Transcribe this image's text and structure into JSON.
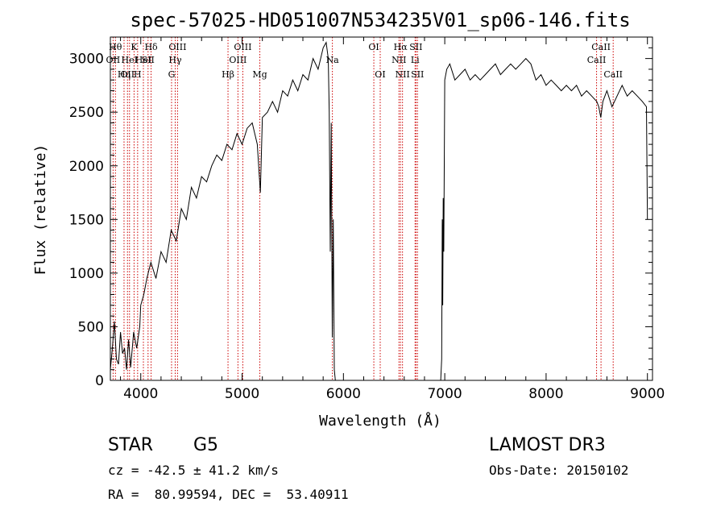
{
  "chart_data": {
    "type": "line",
    "title": "spec-57025-HD051007N534235V01_sp06-146.fits",
    "xlabel": "Wavelength (Å)",
    "ylabel": "Flux (relative)",
    "xlim": [
      3700,
      9050
    ],
    "ylim": [
      0,
      3200
    ],
    "xticks": [
      4000,
      5000,
      6000,
      7000,
      8000,
      9000
    ],
    "yticks": [
      0,
      500,
      1000,
      1500,
      2000,
      2500,
      3000
    ],
    "grid": false,
    "line_color": "#000000",
    "marker_color": "#cc0000",
    "series": [
      {
        "x": [
          3700,
          3720,
          3740,
          3760,
          3780,
          3800,
          3820,
          3840,
          3860,
          3880,
          3900,
          3930,
          3960,
          3990,
          4000,
          4030,
          4060,
          4100,
          4150,
          4200,
          4250,
          4300,
          4350,
          4400,
          4450,
          4500,
          4550,
          4600,
          4650,
          4700,
          4750,
          4800,
          4850,
          4900,
          4950,
          5000,
          5050,
          5100,
          5150,
          5180,
          5200,
          5250,
          5300,
          5350,
          5400,
          5450,
          5500,
          5550,
          5600,
          5650,
          5700,
          5750,
          5800,
          5830,
          5850,
          5860,
          5870,
          5880,
          5890,
          5900,
          5910,
          5920,
          5930,
          5960,
          6000,
          6100,
          6200,
          6300,
          6400,
          6500,
          6600,
          6700,
          6800,
          6900,
          6960,
          6970,
          6975,
          6980,
          6985,
          6990,
          7000,
          7020,
          7050,
          7100,
          7150,
          7200,
          7250,
          7300,
          7350,
          7400,
          7450,
          7500,
          7550,
          7600,
          7650,
          7700,
          7750,
          7800,
          7850,
          7900,
          7950,
          8000,
          8050,
          8100,
          8150,
          8200,
          8250,
          8300,
          8350,
          8400,
          8450,
          8500,
          8520,
          8540,
          8560,
          8600,
          8650,
          8700,
          8750,
          8800,
          8850,
          8900,
          8950,
          8990,
          9000
        ],
        "y": [
          100,
          300,
          550,
          200,
          150,
          450,
          250,
          300,
          100,
          380,
          120,
          450,
          300,
          500,
          700,
          800,
          950,
          1100,
          950,
          1200,
          1100,
          1400,
          1300,
          1600,
          1500,
          1800,
          1700,
          1900,
          1850,
          2000,
          2100,
          2050,
          2200,
          2150,
          2300,
          2200,
          2350,
          2400,
          2200,
          1750,
          2450,
          2500,
          2600,
          2500,
          2700,
          2650,
          2800,
          2700,
          2850,
          2800,
          3000,
          2900,
          3100,
          3150,
          3000,
          2500,
          1200,
          2400,
          400,
          1500,
          100,
          0,
          0,
          0,
          0,
          0,
          0,
          0,
          0,
          0,
          0,
          0,
          0,
          0,
          0,
          200,
          1500,
          700,
          1700,
          1200,
          2800,
          2900,
          2950,
          2800,
          2850,
          2900,
          2800,
          2850,
          2800,
          2850,
          2900,
          2950,
          2850,
          2900,
          2950,
          2900,
          2950,
          3000,
          2950,
          2800,
          2850,
          2750,
          2800,
          2750,
          2700,
          2750,
          2700,
          2750,
          2650,
          2700,
          2650,
          2600,
          2550,
          2450,
          2600,
          2700,
          2550,
          2650,
          2750,
          2650,
          2700,
          2650,
          2600,
          2550,
          1500
        ]
      }
    ],
    "lines": [
      {
        "x": 3727,
        "labels": [
          "OII"
        ],
        "row": 2
      },
      {
        "x": 3750,
        "labels": [
          "Hθ"
        ],
        "row": 1
      },
      {
        "x": 3835,
        "labels": [
          "Hη"
        ],
        "row": 3
      },
      {
        "x": 3869,
        "labels": [
          "OII"
        ],
        "row": 3
      },
      {
        "x": 3889,
        "labels": [
          "HeI"
        ],
        "row": 2
      },
      {
        "x": 3934,
        "labels": [
          "K"
        ],
        "row": 1
      },
      {
        "x": 3969,
        "labels": [
          "H"
        ],
        "row": 3
      },
      {
        "x": 4026,
        "labels": [
          "HeI"
        ],
        "row": 2
      },
      {
        "x": 4072,
        "labels": [
          "SII"
        ],
        "row": 2
      },
      {
        "x": 4102,
        "labels": [
          "Hδ"
        ],
        "row": 1
      },
      {
        "x": 4304,
        "labels": [
          "G"
        ],
        "row": 3
      },
      {
        "x": 4340,
        "labels": [
          "Hγ"
        ],
        "row": 2
      },
      {
        "x": 4363,
        "labels": [
          "OIII"
        ],
        "row": 1
      },
      {
        "x": 4861,
        "labels": [
          "Hβ"
        ],
        "row": 3
      },
      {
        "x": 4959,
        "labels": [
          "OIII"
        ],
        "row": 2
      },
      {
        "x": 5007,
        "labels": [
          "OIII"
        ],
        "row": 1
      },
      {
        "x": 5175,
        "labels": [
          "Mg"
        ],
        "row": 3
      },
      {
        "x": 5891,
        "labels": [
          "Na"
        ],
        "row": 2
      },
      {
        "x": 6300,
        "labels": [
          "OI"
        ],
        "row": 1
      },
      {
        "x": 6363,
        "labels": [
          "OI"
        ],
        "row": 3
      },
      {
        "x": 6548,
        "labels": [
          "NII"
        ],
        "row": 2
      },
      {
        "x": 6563,
        "labels": [
          "Hα"
        ],
        "row": 1
      },
      {
        "x": 6583,
        "labels": [
          "NII"
        ],
        "row": 3
      },
      {
        "x": 6707,
        "labels": [
          "Li"
        ],
        "row": 2
      },
      {
        "x": 6716,
        "labels": [
          "SII"
        ],
        "row": 1
      },
      {
        "x": 6731,
        "labels": [
          "SII"
        ],
        "row": 3
      },
      {
        "x": 8498,
        "labels": [
          "CaII"
        ],
        "row": 2
      },
      {
        "x": 8542,
        "labels": [
          "CaII"
        ],
        "row": 1
      },
      {
        "x": 8662,
        "labels": [
          "CaII"
        ],
        "row": 3
      }
    ]
  },
  "info": {
    "class_label": "STAR",
    "subclass": "G5",
    "survey": "LAMOST DR3",
    "redshift": "cz = -42.5 ± 41.2 km/s",
    "obs_date": "Obs-Date: 20150102",
    "coords": "RA =  80.99594, DEC =  53.40911"
  }
}
